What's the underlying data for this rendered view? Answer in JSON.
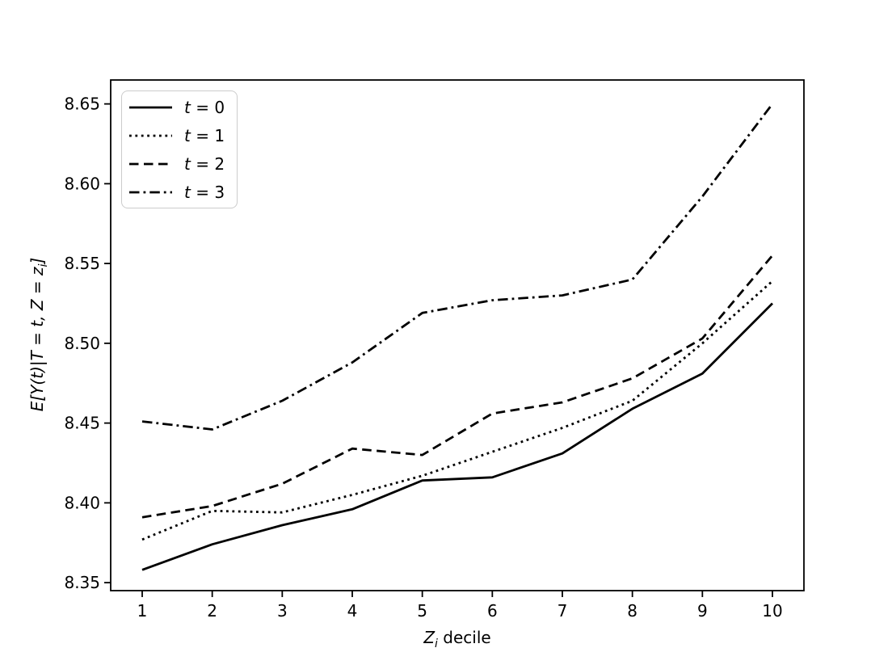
{
  "figure": {
    "background": "#ffffff",
    "line_color": "#000000",
    "legend_border_color": "#cccccc"
  },
  "axes": {
    "x_label": {
      "var": "Z",
      "sub": "i",
      "rest": " decile"
    },
    "y_label": {
      "main": "E[Y(t)|T = t, Z = z",
      "sub": "i",
      "end": "]"
    }
  },
  "legend": {
    "position": "upper left",
    "items": [
      {
        "var": "t",
        "rest": " = 0",
        "linestyle": "solid"
      },
      {
        "var": "t",
        "rest": " = 1",
        "linestyle": "dotted"
      },
      {
        "var": "t",
        "rest": " = 2",
        "linestyle": "dashed"
      },
      {
        "var": "t",
        "rest": " = 3",
        "linestyle": "dashdot"
      }
    ]
  },
  "chart_data": {
    "type": "line",
    "title": "",
    "xlabel": "Z_i decile",
    "ylabel": "E[Y(t)|T = t, Z = z_i]",
    "grid": false,
    "legend_position": "upper left",
    "x": [
      1,
      2,
      3,
      4,
      5,
      6,
      7,
      8,
      9,
      10
    ],
    "categories": [
      "1",
      "2",
      "3",
      "4",
      "5",
      "6",
      "7",
      "8",
      "9",
      "10"
    ],
    "xlim": [
      0.55,
      10.45
    ],
    "ylim": [
      8.345,
      8.665
    ],
    "y_ticks": [
      8.35,
      8.4,
      8.45,
      8.5,
      8.55,
      8.6,
      8.65
    ],
    "y_tick_labels": [
      "8.35",
      "8.40",
      "8.45",
      "8.50",
      "8.55",
      "8.60",
      "8.65"
    ],
    "series": [
      {
        "name": "t = 0",
        "linestyle": "solid",
        "values": [
          8.358,
          8.374,
          8.386,
          8.396,
          8.414,
          8.416,
          8.431,
          8.459,
          8.481,
          8.525
        ]
      },
      {
        "name": "t = 1",
        "linestyle": "dotted",
        "values": [
          8.377,
          8.395,
          8.394,
          8.405,
          8.417,
          8.432,
          8.447,
          8.464,
          8.5,
          8.539
        ]
      },
      {
        "name": "t = 2",
        "linestyle": "dashed",
        "values": [
          8.391,
          8.398,
          8.412,
          8.434,
          8.43,
          8.456,
          8.463,
          8.478,
          8.503,
          8.555
        ]
      },
      {
        "name": "t = 3",
        "linestyle": "dashdot",
        "values": [
          8.451,
          8.446,
          8.464,
          8.488,
          8.519,
          8.527,
          8.53,
          8.54,
          8.592,
          8.65
        ]
      }
    ]
  }
}
